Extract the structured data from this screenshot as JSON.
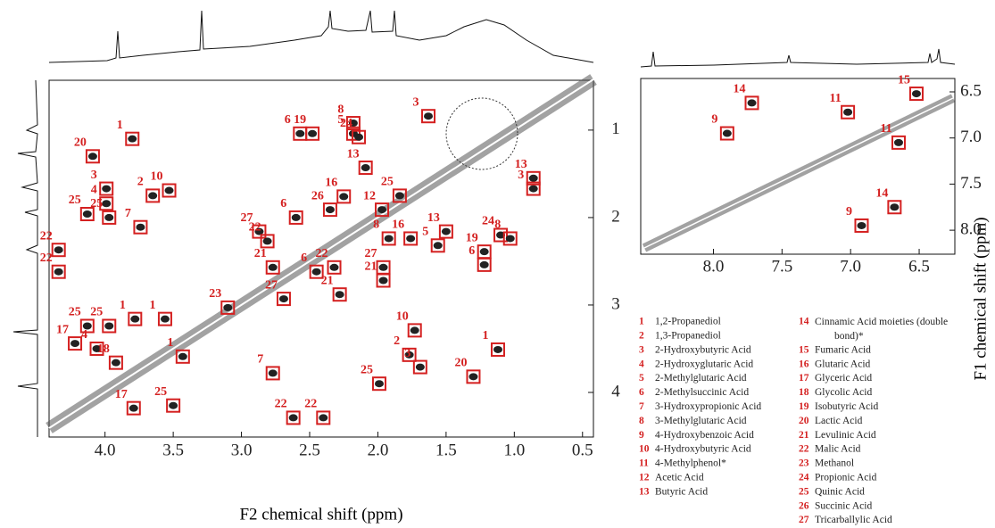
{
  "y_axis_label": "F1 chemical shift (ppm)",
  "main_spectrum": {
    "x_axis": {
      "label": "F2 chemical shift (ppm)",
      "range": [
        4.41,
        0.42
      ],
      "ticks": [
        {
          "value": 4,
          "label": "4.0"
        },
        3.5,
        {
          "value": 3,
          "label": "3.0"
        },
        2.5,
        {
          "value": 2,
          "label": "2.0"
        },
        1.5,
        {
          "value": 1,
          "label": "1.0"
        },
        0.5
      ]
    },
    "y_axis": {
      "range": [
        0.43,
        4.51
      ],
      "ticks": [
        1,
        2,
        3,
        4
      ]
    },
    "peaks": [
      {
        "label": 1,
        "f2": 3.8,
        "f1": 1.1
      },
      {
        "label": 20,
        "f2": 4.09,
        "f1": 1.3
      },
      {
        "label": 3,
        "f2": 3.99,
        "f1": 1.67
      },
      {
        "label": 4,
        "f2": 3.99,
        "f1": 1.84
      },
      {
        "label": 25,
        "f2": 4.13,
        "f1": 1.96
      },
      {
        "label": 25,
        "f2": 3.97,
        "f1": 2.0
      },
      {
        "label": 2,
        "f2": 3.65,
        "f1": 1.75
      },
      {
        "label": 10,
        "f2": 3.53,
        "f1": 1.69
      },
      {
        "label": 7,
        "f2": 3.74,
        "f1": 2.11
      },
      {
        "label": 22,
        "f2": 4.34,
        "f1": 2.37
      },
      {
        "label": 22,
        "f2": 4.34,
        "f1": 2.62
      },
      {
        "label": 8,
        "f2": 2.18,
        "f1": 0.92
      },
      {
        "label": 5,
        "f2": 2.18,
        "f1": 1.04
      },
      {
        "label": 6,
        "f2": 2.57,
        "f1": 1.04
      },
      {
        "label": 19,
        "f2": 2.48,
        "f1": 1.04
      },
      {
        "label": 24,
        "f2": 2.14,
        "f1": 1.08
      },
      {
        "label": 3,
        "f2": 1.63,
        "f1": 0.84
      },
      {
        "label": 13,
        "f2": 2.09,
        "f1": 1.43
      },
      {
        "label": 12,
        "f2": 1.97,
        "f1": 1.91
      },
      {
        "label": 16,
        "f2": 2.25,
        "f1": 1.76
      },
      {
        "label": 26,
        "f2": 2.35,
        "f1": 1.91
      },
      {
        "label": 27,
        "f2": 2.87,
        "f1": 2.16
      },
      {
        "label": 22,
        "f2": 2.81,
        "f1": 2.27
      },
      {
        "label": 6,
        "f2": 2.6,
        "f1": 2.0
      },
      {
        "label": 21,
        "f2": 2.77,
        "f1": 2.57
      },
      {
        "label": 27,
        "f2": 2.69,
        "f1": 2.93
      },
      {
        "label": 6,
        "f2": 2.45,
        "f1": 2.62
      },
      {
        "label": 21,
        "f2": 2.28,
        "f1": 2.88
      },
      {
        "label": 22,
        "f2": 2.32,
        "f1": 2.57
      },
      {
        "label": 27,
        "f2": 1.96,
        "f1": 2.57
      },
      {
        "label": 21,
        "f2": 1.96,
        "f1": 2.72
      },
      {
        "label": 8,
        "f2": 1.92,
        "f1": 2.24
      },
      {
        "label": 13,
        "f2": 1.5,
        "f1": 2.16
      },
      {
        "label": 5,
        "f2": 1.56,
        "f1": 2.32
      },
      {
        "label": 16,
        "f2": 1.76,
        "f1": 2.24
      },
      {
        "label": 25,
        "f2": 1.84,
        "f1": 1.75
      },
      {
        "label": 24,
        "f2": 1.1,
        "f1": 2.2
      },
      {
        "label": 19,
        "f2": 1.22,
        "f1": 2.39
      },
      {
        "label": 6,
        "f2": 1.22,
        "f1": 2.54
      },
      {
        "label": 8,
        "f2": 1.03,
        "f1": 2.24
      },
      {
        "label": 3,
        "f2": 0.86,
        "f1": 1.67
      },
      {
        "label": 13,
        "f2": 0.86,
        "f1": 1.55
      },
      {
        "label": 25,
        "f2": 4.13,
        "f1": 3.24
      },
      {
        "label": 25,
        "f2": 3.97,
        "f1": 3.24
      },
      {
        "label": 1,
        "f2": 3.78,
        "f1": 3.16
      },
      {
        "label": 1,
        "f2": 3.56,
        "f1": 3.16
      },
      {
        "label": 17,
        "f2": 4.22,
        "f1": 3.44
      },
      {
        "label": 4,
        "f2": 4.06,
        "f1": 3.5
      },
      {
        "label": 18,
        "f2": 3.92,
        "f1": 3.66
      },
      {
        "label": 17,
        "f2": 3.79,
        "f1": 4.18
      },
      {
        "label": 25,
        "f2": 3.5,
        "f1": 4.15
      },
      {
        "label": 1,
        "f2": 3.43,
        "f1": 3.59
      },
      {
        "label": 23,
        "f2": 3.1,
        "f1": 3.03
      },
      {
        "label": 7,
        "f2": 2.77,
        "f1": 3.78
      },
      {
        "label": 10,
        "f2": 1.73,
        "f1": 3.29
      },
      {
        "label": 2,
        "f2": 1.77,
        "f1": 3.57
      },
      {
        "label": 3,
        "f2": 1.69,
        "f1": 3.71
      },
      {
        "label": 1,
        "f2": 1.12,
        "f1": 3.51
      },
      {
        "label": 20,
        "f2": 1.3,
        "f1": 3.82
      },
      {
        "label": 22,
        "f2": 2.62,
        "f1": 4.29
      },
      {
        "label": 22,
        "f2": 2.4,
        "f1": 4.29
      },
      {
        "label": 25,
        "f2": 1.99,
        "f1": 3.9
      }
    ]
  },
  "inset_spectrum": {
    "x_axis": {
      "range": [
        8.53,
        6.24
      ],
      "ticks": [
        {
          "value": 8,
          "label": "8.0"
        },
        7.5,
        {
          "value": 7,
          "label": "7.0"
        },
        6.5
      ]
    },
    "y_axis": {
      "range": [
        6.355,
        8.26
      ],
      "ticks": [
        6.5,
        {
          "value": 7,
          "label": "7.0"
        },
        7.5,
        {
          "value": 8,
          "label": "8.0"
        }
      ]
    },
    "peaks": [
      {
        "label": 9,
        "f2": 7.9,
        "f1": 6.95
      },
      {
        "label": 14,
        "f2": 7.72,
        "f1": 6.62
      },
      {
        "label": 11,
        "f2": 7.02,
        "f1": 6.72
      },
      {
        "label": 15,
        "f2": 6.52,
        "f1": 6.52
      },
      {
        "label": 11,
        "f2": 6.65,
        "f1": 7.05
      },
      {
        "label": 9,
        "f2": 6.92,
        "f1": 7.95
      },
      {
        "label": 14,
        "f2": 6.68,
        "f1": 7.75
      }
    ]
  },
  "legend": [
    {
      "number": 1,
      "name": "1,2-Propanediol"
    },
    {
      "number": 2,
      "name": "1,3-Propanediol"
    },
    {
      "number": 3,
      "name": "2-Hydroxybutyric Acid"
    },
    {
      "number": 4,
      "name": "2-Hydroxyglutaric Acid"
    },
    {
      "number": 5,
      "name": "2-Methylglutaric Acid"
    },
    {
      "number": 6,
      "name": "2-Methylsuccinic Acid"
    },
    {
      "number": 7,
      "name": "3-Hydroxypropionic Acid"
    },
    {
      "number": 8,
      "name": "3-Methylglutaric Acid"
    },
    {
      "number": 9,
      "name": "4-Hydroxybenzoic Acid"
    },
    {
      "number": 10,
      "name": "4-Hydroxybutyric Acid"
    },
    {
      "number": 11,
      "name": "4-Methylphenol*"
    },
    {
      "number": 12,
      "name": "Acetic Acid"
    },
    {
      "number": 13,
      "name": "Butyric Acid"
    },
    {
      "number": 14,
      "name": "Cinnamic Acid moieties (double bond)*"
    },
    {
      "number": 15,
      "name": "Fumaric Acid"
    },
    {
      "number": 16,
      "name": "Glutaric Acid"
    },
    {
      "number": 17,
      "name": "Glyceric Acid"
    },
    {
      "number": 18,
      "name": "Glycolic Acid"
    },
    {
      "number": 19,
      "name": "Isobutyric Acid"
    },
    {
      "number": 20,
      "name": "Lactic Acid"
    },
    {
      "number": 21,
      "name": "Levulinic Acid"
    },
    {
      "number": 22,
      "name": "Malic Acid"
    },
    {
      "number": 23,
      "name": "Methanol"
    },
    {
      "number": 24,
      "name": "Propionic Acid"
    },
    {
      "number": 25,
      "name": "Quinic Acid"
    },
    {
      "number": 26,
      "name": "Succinic Acid"
    },
    {
      "number": 27,
      "name": "Tricarballylic Acid"
    }
  ]
}
